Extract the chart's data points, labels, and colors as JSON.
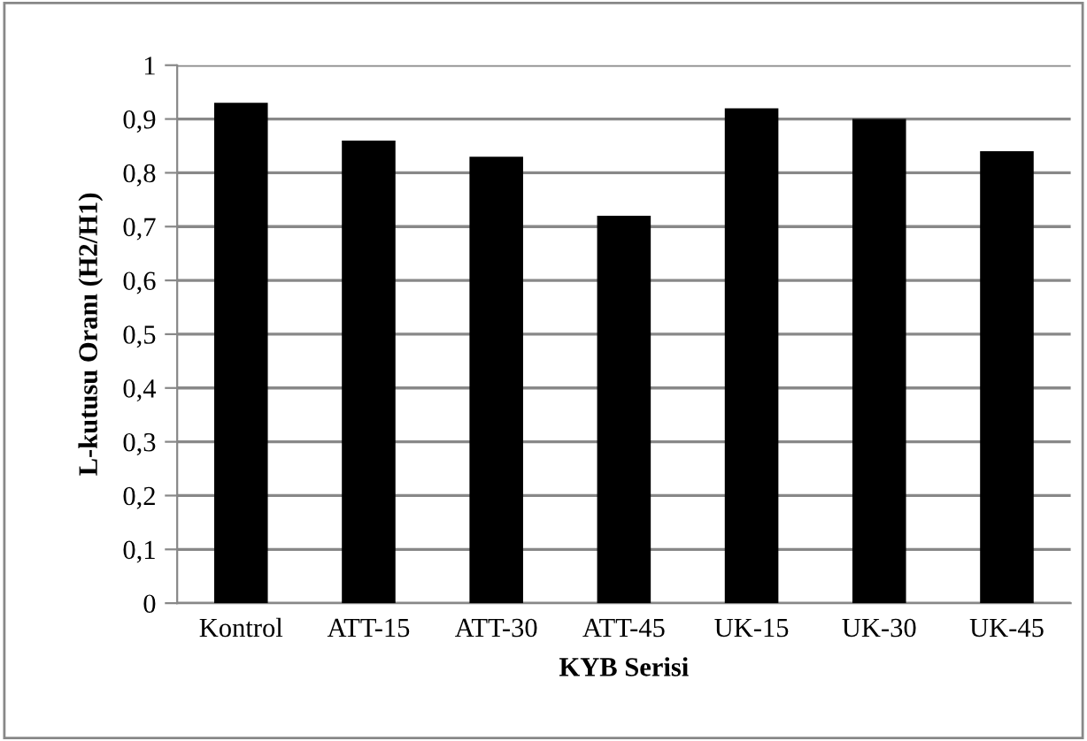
{
  "chart_data": {
    "type": "bar",
    "xlabel": "KYB Serisi",
    "ylabel": "L-kutusu Oranı (H2/H1)",
    "categories": [
      "Kontrol",
      "ATT-15",
      "ATT-30",
      "ATT-45",
      "UK-15",
      "UK-30",
      "UK-45"
    ],
    "values": [
      0.93,
      0.86,
      0.83,
      0.72,
      0.92,
      0.9,
      0.84
    ],
    "color": "#000000",
    "ylim": [
      0,
      1
    ],
    "yticks": [
      0,
      {
        "value": 0.1,
        "label": "0,1"
      },
      {
        "value": 0.2,
        "label": "0,2"
      },
      {
        "value": 0.3,
        "label": "0,3"
      },
      {
        "value": 0.4,
        "label": "0,4"
      },
      {
        "value": 0.5,
        "label": "0,5"
      },
      {
        "value": 0.6,
        "label": "0,6"
      },
      {
        "value": 0.7,
        "label": "0,7"
      },
      {
        "value": 0.8,
        "label": "0,8"
      },
      {
        "value": 0.9,
        "label": "0,9"
      },
      1
    ],
    "grid": "y"
  }
}
